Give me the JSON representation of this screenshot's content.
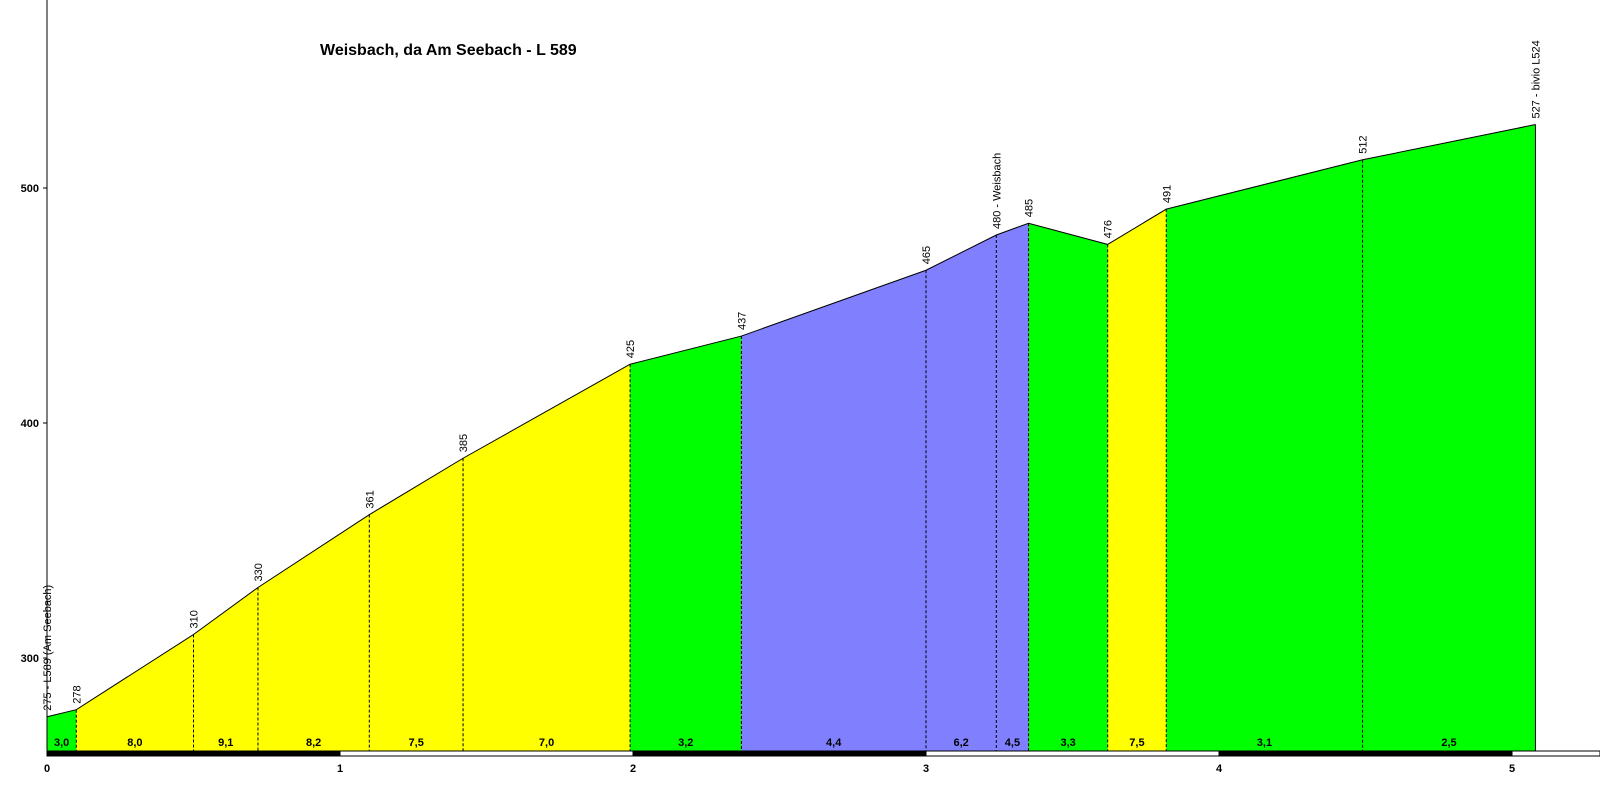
{
  "chart_data": {
    "type": "area",
    "title": "Weisbach, da Am Seebach - L 589",
    "xlabel": "",
    "ylabel": "",
    "xlim": [
      0,
      5.25
    ],
    "ylim": [
      260,
      580
    ],
    "x_ticks": [
      "0",
      "1",
      "2",
      "3",
      "4",
      "5"
    ],
    "y_ticks": [
      "300",
      "400",
      "500"
    ],
    "profile": [
      {
        "x": 0.0,
        "y": 275,
        "label": "275 - L589 (Am Seebach)"
      },
      {
        "x": 0.1,
        "y": 278,
        "label": "278"
      },
      {
        "x": 0.5,
        "y": 310,
        "label": "310"
      },
      {
        "x": 0.72,
        "y": 330,
        "label": "330"
      },
      {
        "x": 1.1,
        "y": 361,
        "label": "361"
      },
      {
        "x": 1.42,
        "y": 385,
        "label": "385"
      },
      {
        "x": 1.99,
        "y": 425,
        "label": "425"
      },
      {
        "x": 2.37,
        "y": 437,
        "label": "437"
      },
      {
        "x": 3.0,
        "y": 465,
        "label": "465"
      },
      {
        "x": 3.24,
        "y": 480,
        "label": "480 - Weisbach"
      },
      {
        "x": 3.35,
        "y": 485,
        "label": "485"
      },
      {
        "x": 3.62,
        "y": 476,
        "label": "476"
      },
      {
        "x": 3.82,
        "y": 491,
        "label": "491"
      },
      {
        "x": 4.49,
        "y": 512,
        "label": "512"
      },
      {
        "x": 5.08,
        "y": 527,
        "label": "527 - bivio L524"
      }
    ],
    "gradients": [
      "3,0",
      "8,0",
      "9,1",
      "8,2",
      "7,5",
      "7,0",
      "3,2",
      "4,4",
      "6,2",
      "4,5",
      "3,3",
      "7,5",
      "3,1",
      "2,5"
    ],
    "segment_colors": [
      "#00ff00",
      "#ffff00",
      "#ffff00",
      "#ffff00",
      "#ffff00",
      "#ffff00",
      "#00ff00",
      "#8080ff",
      "#8080ff",
      "#8080ff",
      "#00ff00",
      "#ffff00",
      "#00ff00",
      "#00ff00"
    ]
  }
}
